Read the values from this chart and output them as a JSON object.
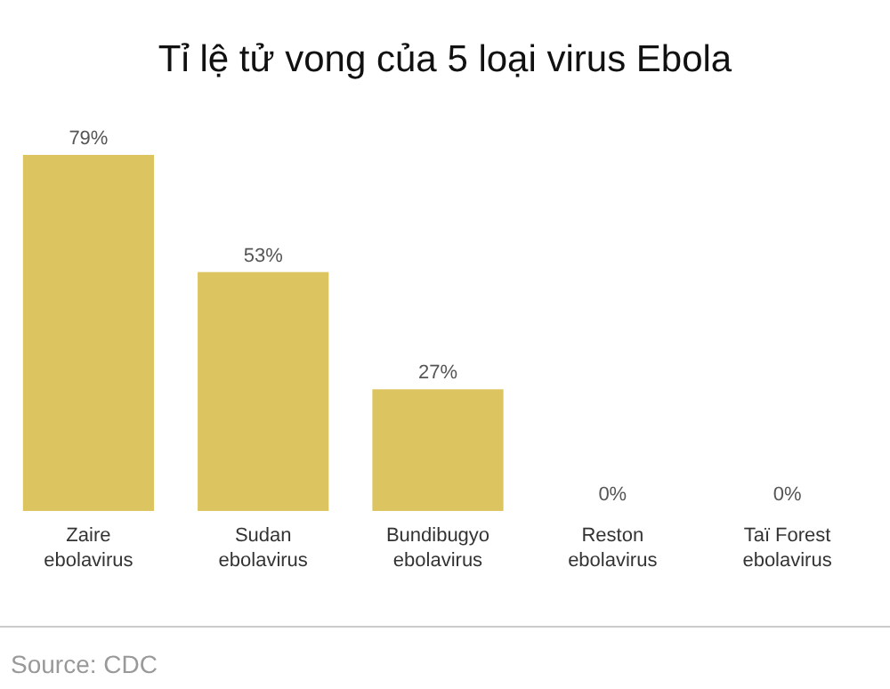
{
  "chart_data": {
    "type": "bar",
    "title": "Tỉ lệ tử vong của 5 loại virus Ebola",
    "categories": [
      "Zaire\nebolavirus",
      "Sudan\nebolavirus",
      "Bundibugyo\nebolavirus",
      "Reston\nebolavirus",
      "Taï Forest\nebolavirus"
    ],
    "values": [
      79,
      53,
      27,
      0,
      0
    ],
    "value_labels": [
      "79%",
      "53%",
      "27%",
      "0%",
      "0%"
    ],
    "color": "#dcc560",
    "annotations": [
      "Source: CDC"
    ]
  }
}
